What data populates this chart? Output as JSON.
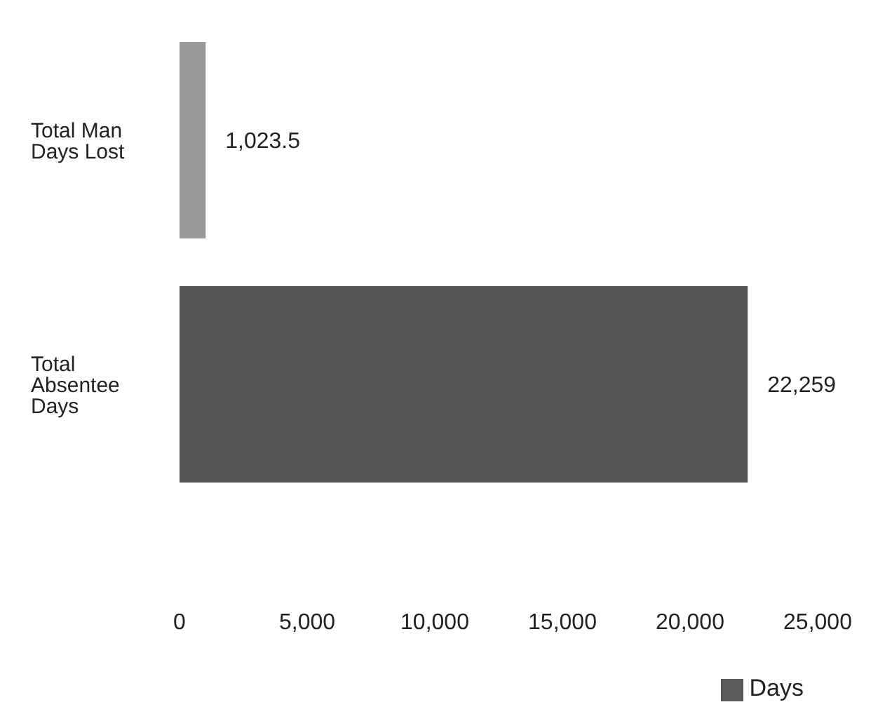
{
  "chart_data": {
    "type": "bar",
    "orientation": "horizontal",
    "categories": [
      "Total Man Days Lost",
      "Total Absentee Days"
    ],
    "series": [
      {
        "name": "Days",
        "color": "#5a5a5a",
        "colors": [
          "#9a9a9a",
          "#555555"
        ],
        "values": [
          1023.5,
          22259
        ],
        "value_labels": [
          "1,023.5",
          "22,259"
        ]
      }
    ],
    "xlim": [
      0,
      25000
    ],
    "xticks": [
      0,
      {
        "value": 5000,
        "label": "5,000"
      },
      {
        "value": 10000,
        "label": "10,000"
      },
      {
        "value": 15000,
        "label": "15,000"
      },
      {
        "value": 20000,
        "label": "20,000"
      },
      {
        "value": 25000,
        "label": "25,000"
      }
    ],
    "legend": "bottom right"
  }
}
